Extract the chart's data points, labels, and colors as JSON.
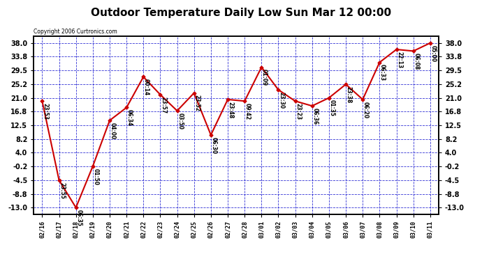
{
  "title": "Outdoor Temperature Daily Low Sun Mar 12 00:00",
  "copyright": "Copyright 2006 Curtronics.com",
  "x_labels": [
    "02/16",
    "02/17",
    "02/18",
    "02/19",
    "02/20",
    "02/21",
    "02/22",
    "02/23",
    "02/24",
    "02/25",
    "02/26",
    "02/27",
    "02/28",
    "03/01",
    "03/02",
    "03/03",
    "03/04",
    "03/05",
    "03/06",
    "03/07",
    "03/08",
    "03/09",
    "03/10",
    "03/11"
  ],
  "y_values": [
    20.0,
    -4.5,
    -13.0,
    -0.2,
    14.0,
    18.0,
    27.5,
    22.0,
    17.0,
    22.5,
    9.5,
    20.5,
    20.0,
    30.5,
    23.5,
    20.0,
    18.5,
    21.0,
    25.2,
    20.5,
    32.0,
    36.0,
    35.5,
    38.0
  ],
  "point_labels": [
    "23:53",
    "23:55",
    "06:35",
    "01:50",
    "04:00",
    "06:34",
    "00:14",
    "23:57",
    "03:50",
    "23:52",
    "06:30",
    "23:48",
    "09:42",
    "01:09",
    "23:30",
    "23:23",
    "06:36",
    "01:35",
    "23:38",
    "06:20",
    "06:33",
    "22:13",
    "06:08",
    "05:00"
  ],
  "yticks": [
    38.0,
    33.8,
    29.5,
    25.2,
    21.0,
    16.8,
    12.5,
    8.2,
    4.0,
    -0.2,
    -4.5,
    -8.8,
    -13.0
  ],
  "ylim_min": -15.0,
  "ylim_max": 40.0,
  "line_color": "#cc0000",
  "grid_color": "#0000cc",
  "bg_color": "#ffffff",
  "title_fontsize": 11,
  "tick_fontsize": 7,
  "xlabel_fontsize": 6,
  "annot_fontsize": 5.5
}
